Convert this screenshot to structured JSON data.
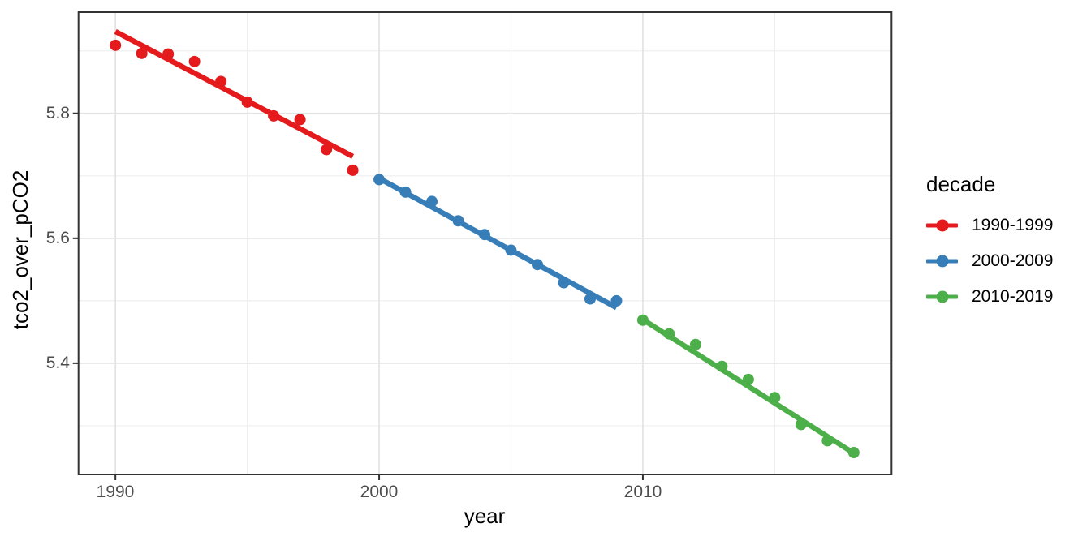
{
  "chart_data": {
    "type": "scatter",
    "title": "",
    "xlabel": "year",
    "ylabel": "tco2_over_pCO2",
    "x_range": [
      1988.6,
      2019.43
    ],
    "y_range": [
      5.222,
      5.962
    ],
    "x_major_ticks": [
      {
        "value": 1990,
        "label": "1990"
      },
      {
        "value": 2000,
        "label": "2000"
      },
      {
        "value": 2010,
        "label": "2010"
      }
    ],
    "y_major_ticks": [
      {
        "value": 5.8,
        "label": "5.8"
      },
      {
        "value": 5.6,
        "label": "5.6"
      },
      {
        "value": 5.4,
        "label": "5.4"
      }
    ],
    "x_minor_ticks": [
      1995,
      2005,
      2015
    ],
    "y_minor_ticks": [
      5.9,
      5.7,
      5.5,
      5.3
    ],
    "grid": true,
    "legend": {
      "title": "decade",
      "position": "right"
    },
    "series": [
      {
        "name": "1990-1999",
        "color": "#e41a1c",
        "x": [
          1990,
          1991,
          1992,
          1993,
          1994,
          1995,
          1996,
          1997,
          1998,
          1999
        ],
        "y": [
          5.909,
          5.896,
          5.895,
          5.883,
          5.851,
          5.818,
          5.796,
          5.79,
          5.742,
          5.709
        ],
        "trend": {
          "x": [
            1990,
            1999
          ],
          "y": [
            5.931,
            5.731
          ]
        }
      },
      {
        "name": "2000-2009",
        "color": "#377eb8",
        "x": [
          2000,
          2001,
          2002,
          2003,
          2004,
          2005,
          2006,
          2007,
          2008,
          2009
        ],
        "y": [
          5.694,
          5.674,
          5.659,
          5.628,
          5.606,
          5.581,
          5.558,
          5.529,
          5.503,
          5.5
        ],
        "trend": {
          "x": [
            2000,
            2009
          ],
          "y": [
            5.696,
            5.489
          ]
        }
      },
      {
        "name": "2010-2019",
        "color": "#4daf4a",
        "x": [
          2010,
          2011,
          2012,
          2013,
          2014,
          2015,
          2016,
          2017,
          2018
        ],
        "y": [
          5.469,
          5.447,
          5.43,
          5.395,
          5.374,
          5.345,
          5.302,
          5.276,
          5.257
        ],
        "trend": {
          "x": [
            2010,
            2018
          ],
          "y": [
            5.47,
            5.256
          ]
        }
      }
    ],
    "style": {
      "background": "#ffffff",
      "panel_background": "#ffffff",
      "grid_major": "#e3e3e3",
      "grid_minor": "#efefef",
      "panel_border": "#333333",
      "tick_color": "#333333",
      "axis_text_color": "#4d4d4d",
      "title_color": "#000000"
    }
  }
}
